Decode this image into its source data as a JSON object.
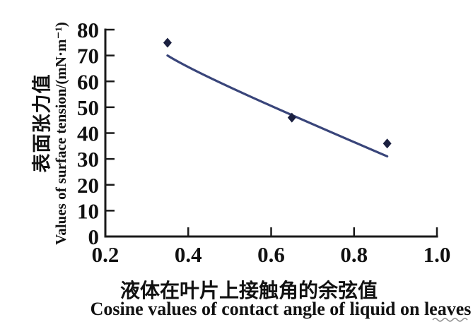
{
  "figure": {
    "background": "#ffffff"
  },
  "chart_data": {
    "type": "scatter",
    "title": "",
    "xlabel_cn": "液体在叶片上接触角的余弦值",
    "xlabel_en": "Cosine values of contact angle of liquid on leaves",
    "ylabel_cn": "表面张力值",
    "ylabel_en": "Values of surface tension/(mN·m⁻¹)",
    "xlim": [
      0.2,
      1.0
    ],
    "ylim": [
      0,
      80
    ],
    "xticks": [
      {
        "value": 0.2,
        "label": "0.2"
      },
      {
        "value": 0.4,
        "label": "0.4"
      },
      {
        "value": 0.6,
        "label": "0.6"
      },
      {
        "value": 0.8,
        "label": "0.8"
      },
      {
        "value": 1.0,
        "label": "1.0"
      }
    ],
    "yticks": [
      {
        "value": 0,
        "label": "0"
      },
      {
        "value": 10,
        "label": "10"
      },
      {
        "value": 20,
        "label": "20"
      },
      {
        "value": 30,
        "label": "30"
      },
      {
        "value": 40,
        "label": "40"
      },
      {
        "value": 50,
        "label": "50"
      },
      {
        "value": 60,
        "label": "60"
      },
      {
        "value": 70,
        "label": "70"
      },
      {
        "value": 80,
        "label": "80"
      }
    ],
    "points": [
      {
        "x": 0.35,
        "y": 72.5
      },
      {
        "x": 0.65,
        "y": 43.5
      },
      {
        "x": 0.88,
        "y": 33.5
      }
    ],
    "trend_line": {
      "x1": 0.35,
      "y1": 70,
      "x2": 0.88,
      "y2": 31
    },
    "grid": false,
    "legend": null,
    "marker": "filled-diamond",
    "colors": {
      "axis": "#1a1a1a",
      "tick_text": "#111111",
      "marker": "#1b2040",
      "trend": "#39457a",
      "squiggle": "#6b6b6b"
    }
  }
}
